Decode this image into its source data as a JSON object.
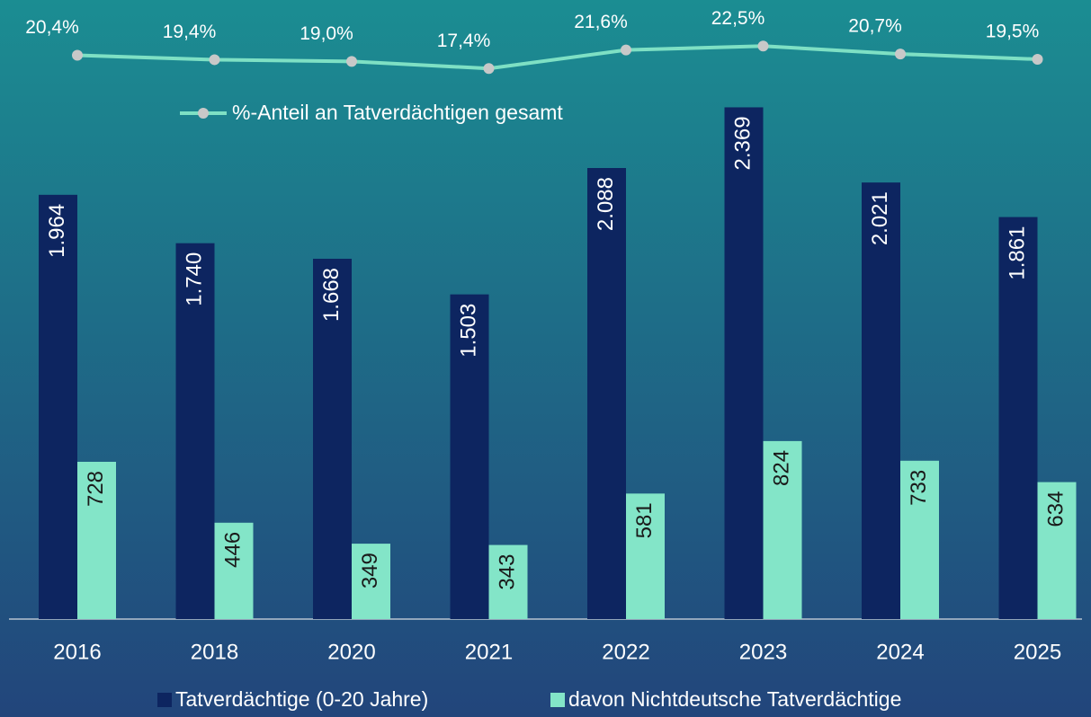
{
  "chart_data": {
    "type": "bar",
    "categories": [
      "2016",
      "2018",
      "2020",
      "2021",
      "2022",
      "2023",
      "2024",
      "2025"
    ],
    "series": [
      {
        "name": "Tatverdächtige (0-20 Jahre)",
        "color": "#0d2560",
        "values": [
          1964,
          1740,
          1668,
          1503,
          2088,
          2369,
          2021,
          1861
        ],
        "value_labels": [
          "1.964",
          "1.740",
          "1.668",
          "1.503",
          "2.088",
          "2.369",
          "2.021",
          "1.861"
        ]
      },
      {
        "name": "davon Nichtdeutsche Tatverdächtige",
        "color": "#83e5c8",
        "values": [
          728,
          446,
          349,
          343,
          581,
          824,
          733,
          634
        ]
      },
      {
        "name": "%-Anteil an Tatverdächtigen gesamt",
        "type": "line",
        "axis": "y2",
        "color": "#7ee0c4",
        "values": [
          20.4,
          19.4,
          19.0,
          17.4,
          21.6,
          22.5,
          20.7,
          19.5
        ],
        "value_labels": [
          "20,4%",
          "19,4%",
          "19,0%",
          "17,4%",
          "21,6%",
          "22,5%",
          "20,7%",
          "19,5%"
        ]
      }
    ],
    "ylim": [
      0,
      2400
    ],
    "y2lim": [
      15,
      25
    ]
  }
}
